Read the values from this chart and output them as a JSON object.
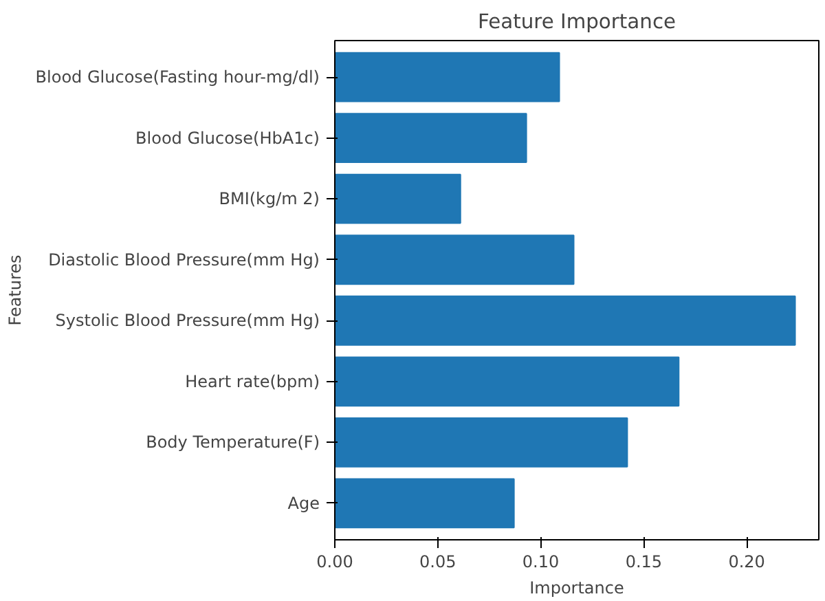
{
  "chart_data": {
    "type": "bar",
    "orientation": "horizontal",
    "title": "Feature Importance",
    "xlabel": "Importance",
    "ylabel": "Features",
    "categories": [
      "Blood Glucose(Fasting hour-mg/dl)",
      "Blood Glucose(HbA1c)",
      "BMI(kg/m 2)",
      "Diastolic Blood Pressure(mm Hg)",
      "Systolic Blood Pressure(mm Hg)",
      "Heart rate(bpm)",
      "Body Temperature(F)",
      "Age"
    ],
    "values": [
      0.109,
      0.093,
      0.061,
      0.116,
      0.2235,
      0.167,
      0.142,
      0.087
    ],
    "color": "#1f77b4",
    "xlim": [
      0,
      0.235
    ],
    "xticks": [
      {
        "value": 0,
        "label": "0.00"
      },
      {
        "value": 0.05,
        "label": "0.05"
      },
      {
        "value": 0.1,
        "label": "0.10"
      },
      {
        "value": 0.15,
        "label": "0.15"
      },
      {
        "value": 0.2,
        "label": "0.20"
      }
    ],
    "grid": false
  }
}
